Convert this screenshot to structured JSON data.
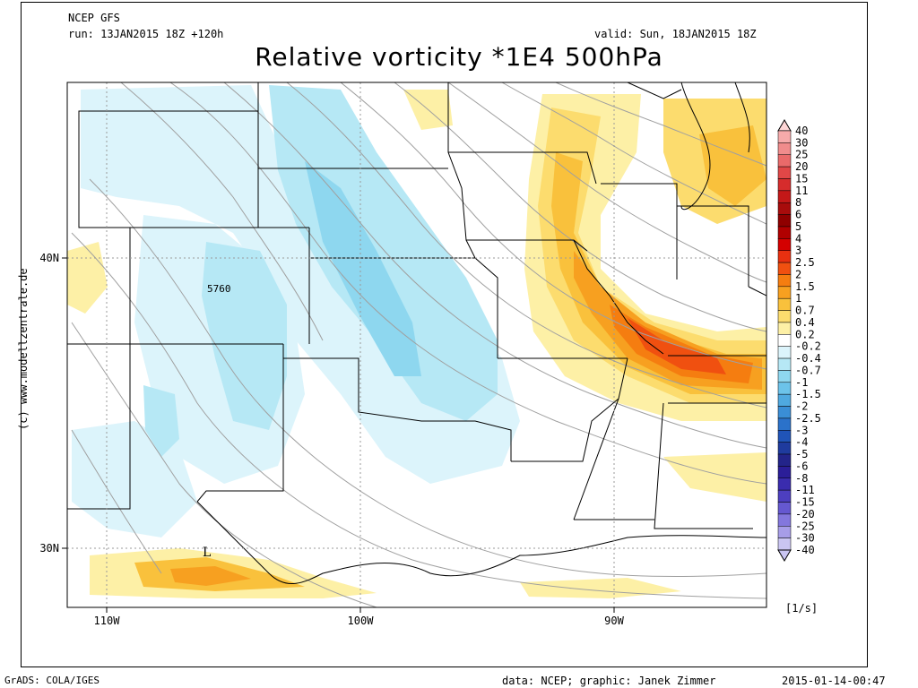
{
  "header": {
    "model": "NCEP GFS",
    "run": "run: 13JAN2015 18Z +120h",
    "valid": "valid: Sun, 18JAN2015 18Z",
    "title": "Relative vorticity *1E4 500hPa"
  },
  "side_label": "(c) www.modellzentrale.de",
  "map": {
    "lon_ticks": [
      "110W",
      "100W",
      "90W"
    ],
    "lat_ticks": [
      "40N",
      "30N"
    ],
    "contour_label": "5760",
    "low_marker": "L"
  },
  "colorbar": {
    "unit": "[1/s]",
    "levels": [
      "40",
      "30",
      "25",
      "20",
      "15",
      "11",
      "8",
      "6",
      "5",
      "4",
      "3",
      "2.5",
      "2",
      "1.5",
      "1",
      "0.7",
      "0.4",
      "0.2",
      "-0.2",
      "-0.4",
      "-0.7",
      "-1",
      "-1.5",
      "-2",
      "-2.5",
      "-3",
      "-4",
      "-5",
      "-6",
      "-8",
      "-11",
      "-15",
      "-20",
      "-25",
      "-30",
      "-40"
    ],
    "colors": [
      "#fdd5d5",
      "#f6aaaa",
      "#f08c8c",
      "#e96a6a",
      "#e04747",
      "#d62c2c",
      "#c41818",
      "#a80c0c",
      "#8f0000",
      "#b00000",
      "#d40000",
      "#e83010",
      "#f05010",
      "#f57d10",
      "#f7a020",
      "#f9c13c",
      "#fcdc6e",
      "#fdf0a6",
      "#ffffff",
      "#dcf4fb",
      "#b6e8f5",
      "#8ed7ef",
      "#6cc3ea",
      "#4fa9e0",
      "#3a8ed6",
      "#2b72ca",
      "#2054b8",
      "#1f3b9e",
      "#23248a",
      "#2b1e98",
      "#3a2cae",
      "#4d3fc0",
      "#6558d0",
      "#8377dd",
      "#a79de8",
      "#cac5f2"
    ]
  },
  "footer": {
    "left": "GrADS: COLA/IGES",
    "center": "data: NCEP; graphic: Janek Zimmer",
    "right": "2015-01-14-00:47"
  }
}
